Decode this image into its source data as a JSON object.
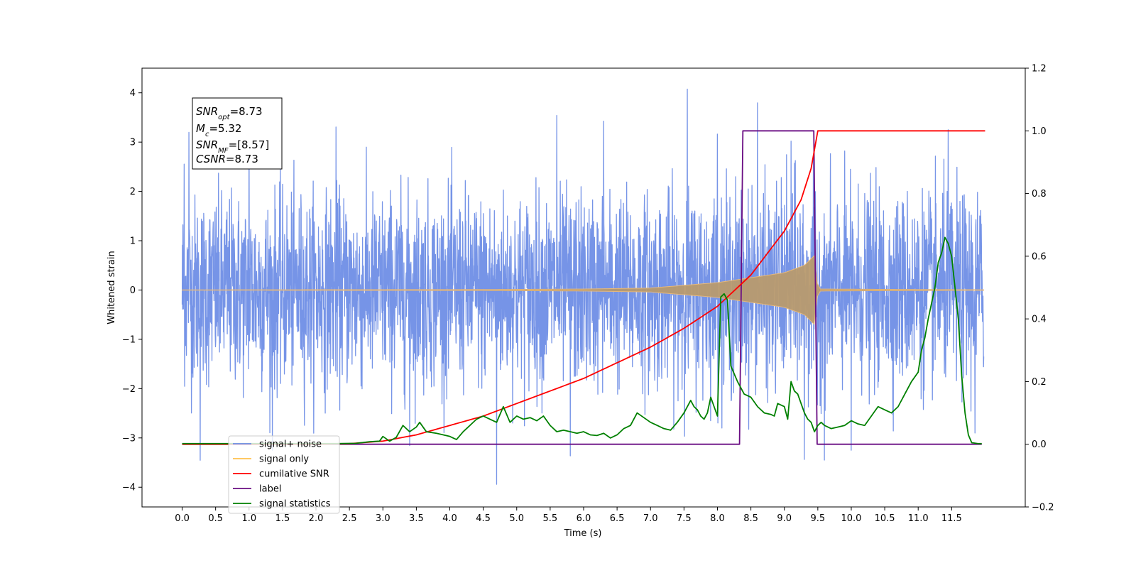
{
  "chart_data": {
    "type": "line",
    "xlabel": "Time (s)",
    "ylabel": "Whitened strain",
    "x_ticks": [
      "0.0",
      "0.5",
      "1.0",
      "1.5",
      "2.0",
      "2.5",
      "3.0",
      "3.5",
      "4.0",
      "4.5",
      "5.0",
      "5.5",
      "6.0",
      "6.5",
      "7.0",
      "7.5",
      "8.0",
      "8.5",
      "9.0",
      "9.5",
      "10.0",
      "10.5",
      "11.0",
      "11.5"
    ],
    "xlim": [
      -0.6,
      12.6
    ],
    "ylim_left": [
      -4.4,
      4.5
    ],
    "ylim_right": [
      -0.2,
      1.2
    ],
    "y_left_ticks": [
      "4",
      "3",
      "2",
      "1",
      "0",
      "−1",
      "−2",
      "−3",
      "−4"
    ],
    "y_right_ticks": [
      "1.2",
      "1.0",
      "0.8",
      "0.6",
      "0.4",
      "0.2",
      "0.0",
      "−0.2"
    ],
    "info_box": {
      "snr_opt": {
        "base": "SNR",
        "sub": "opt",
        "value": "=8.73"
      },
      "mc": {
        "base": "M",
        "sub": "c",
        "value": "=5.32"
      },
      "snr_mf": {
        "base": "SNR",
        "sub": "MF",
        "value": "=[8.57]"
      },
      "csnr": {
        "base": "CSNR",
        "sub": "",
        "value": "=8.73"
      }
    },
    "legend": {
      "placement": "lower-left",
      "entries": [
        {
          "label": "signal+ noise",
          "color": "#6f8ee6"
        },
        {
          "label": "signal only",
          "color": "#ffc04d"
        },
        {
          "label": "cumilative SNR",
          "color": "#ff0000"
        },
        {
          "label": "label",
          "color": "#6a0d83"
        },
        {
          "label": "signal statistics",
          "color": "#008000"
        }
      ]
    },
    "series": [
      {
        "name": "signal+ noise",
        "axis": "left",
        "color": "#6f8ee6",
        "style": "dense noise",
        "envelope_abs": 2.3,
        "peak_points": [
          [
            0.03,
            2.55
          ],
          [
            0.1,
            3.2
          ],
          [
            0.27,
            -3.45
          ],
          [
            1.0,
            3.1
          ],
          [
            1.35,
            -3.25
          ],
          [
            2.3,
            3.3
          ],
          [
            3.4,
            -3.15
          ],
          [
            4.7,
            -3.95
          ],
          [
            5.6,
            3.55
          ],
          [
            5.8,
            -3.35
          ],
          [
            6.3,
            3.4
          ],
          [
            7.55,
            4.1
          ],
          [
            8.0,
            3.3
          ],
          [
            8.6,
            3.55
          ],
          [
            9.1,
            3.4
          ],
          [
            9.3,
            -3.25
          ],
          [
            9.6,
            -3.45
          ],
          [
            10.0,
            -3.25
          ],
          [
            11.45,
            3.25
          ],
          [
            11.85,
            -2.9
          ]
        ]
      },
      {
        "name": "signal only",
        "axis": "left",
        "color": "#b89a6e",
        "style": "chirp envelope",
        "envelope": [
          [
            0,
            0.003
          ],
          [
            4.5,
            0.01
          ],
          [
            6,
            0.02
          ],
          [
            7,
            0.04
          ],
          [
            8,
            0.15
          ],
          [
            8.5,
            0.25
          ],
          [
            9.0,
            0.35
          ],
          [
            9.3,
            0.5
          ],
          [
            9.45,
            0.7
          ],
          [
            9.5,
            0.02
          ],
          [
            12,
            0.005
          ]
        ]
      },
      {
        "name": "cumilative SNR",
        "axis": "right",
        "color": "#ff0000",
        "points": [
          [
            0,
            0
          ],
          [
            1,
            0
          ],
          [
            2,
            0
          ],
          [
            2.5,
            0.002
          ],
          [
            3,
            0.01
          ],
          [
            3.5,
            0.03
          ],
          [
            4,
            0.06
          ],
          [
            4.5,
            0.09
          ],
          [
            5,
            0.13
          ],
          [
            5.5,
            0.17
          ],
          [
            6,
            0.21
          ],
          [
            6.5,
            0.26
          ],
          [
            7,
            0.31
          ],
          [
            7.5,
            0.37
          ],
          [
            8,
            0.44
          ],
          [
            8.5,
            0.54
          ],
          [
            9,
            0.68
          ],
          [
            9.25,
            0.78
          ],
          [
            9.4,
            0.88
          ],
          [
            9.5,
            1.0
          ],
          [
            12,
            1.0
          ]
        ]
      },
      {
        "name": "label",
        "axis": "right",
        "color": "#6a0d83",
        "points": [
          [
            0,
            0
          ],
          [
            8.33,
            0
          ],
          [
            8.38,
            1.0
          ],
          [
            9.44,
            1.0
          ],
          [
            9.49,
            0
          ],
          [
            11.95,
            0
          ]
        ]
      },
      {
        "name": "signal statistics",
        "axis": "right",
        "color": "#008000",
        "points": [
          [
            0,
            0.002
          ],
          [
            2.0,
            0.002
          ],
          [
            2.3,
            0.002
          ],
          [
            2.6,
            0.003
          ],
          [
            2.8,
            0.008
          ],
          [
            2.95,
            0.01
          ],
          [
            3.0,
            0.025
          ],
          [
            3.1,
            0.01
          ],
          [
            3.2,
            0.022
          ],
          [
            3.3,
            0.06
          ],
          [
            3.4,
            0.04
          ],
          [
            3.5,
            0.055
          ],
          [
            3.55,
            0.07
          ],
          [
            3.65,
            0.04
          ],
          [
            3.8,
            0.035
          ],
          [
            4.0,
            0.025
          ],
          [
            4.1,
            0.015
          ],
          [
            4.2,
            0.04
          ],
          [
            4.3,
            0.06
          ],
          [
            4.4,
            0.08
          ],
          [
            4.5,
            0.09
          ],
          [
            4.6,
            0.08
          ],
          [
            4.7,
            0.07
          ],
          [
            4.8,
            0.12
          ],
          [
            4.9,
            0.07
          ],
          [
            5.0,
            0.09
          ],
          [
            5.1,
            0.08
          ],
          [
            5.2,
            0.085
          ],
          [
            5.3,
            0.075
          ],
          [
            5.4,
            0.09
          ],
          [
            5.5,
            0.06
          ],
          [
            5.6,
            0.04
          ],
          [
            5.7,
            0.045
          ],
          [
            5.8,
            0.04
          ],
          [
            5.9,
            0.035
          ],
          [
            6.0,
            0.04
          ],
          [
            6.1,
            0.03
          ],
          [
            6.2,
            0.028
          ],
          [
            6.3,
            0.035
          ],
          [
            6.4,
            0.02
          ],
          [
            6.5,
            0.03
          ],
          [
            6.6,
            0.05
          ],
          [
            6.7,
            0.06
          ],
          [
            6.8,
            0.1
          ],
          [
            6.9,
            0.085
          ],
          [
            7.0,
            0.07
          ],
          [
            7.1,
            0.06
          ],
          [
            7.2,
            0.05
          ],
          [
            7.3,
            0.045
          ],
          [
            7.4,
            0.07
          ],
          [
            7.5,
            0.1
          ],
          [
            7.6,
            0.14
          ],
          [
            7.65,
            0.12
          ],
          [
            7.7,
            0.11
          ],
          [
            7.75,
            0.09
          ],
          [
            7.8,
            0.08
          ],
          [
            7.85,
            0.1
          ],
          [
            7.9,
            0.15
          ],
          [
            8.0,
            0.09
          ],
          [
            8.05,
            0.47
          ],
          [
            8.1,
            0.48
          ],
          [
            8.15,
            0.46
          ],
          [
            8.2,
            0.25
          ],
          [
            8.3,
            0.2
          ],
          [
            8.4,
            0.16
          ],
          [
            8.5,
            0.15
          ],
          [
            8.6,
            0.12
          ],
          [
            8.7,
            0.1
          ],
          [
            8.8,
            0.095
          ],
          [
            8.85,
            0.09
          ],
          [
            8.9,
            0.13
          ],
          [
            9.0,
            0.12
          ],
          [
            9.05,
            0.08
          ],
          [
            9.1,
            0.2
          ],
          [
            9.15,
            0.17
          ],
          [
            9.2,
            0.16
          ],
          [
            9.3,
            0.1
          ],
          [
            9.35,
            0.08
          ],
          [
            9.4,
            0.07
          ],
          [
            9.45,
            0.04
          ],
          [
            9.5,
            0.06
          ],
          [
            9.55,
            0.07
          ],
          [
            9.6,
            0.06
          ],
          [
            9.7,
            0.05
          ],
          [
            9.8,
            0.055
          ],
          [
            9.9,
            0.06
          ],
          [
            10.0,
            0.075
          ],
          [
            10.1,
            0.065
          ],
          [
            10.2,
            0.06
          ],
          [
            10.3,
            0.09
          ],
          [
            10.4,
            0.12
          ],
          [
            10.5,
            0.11
          ],
          [
            10.6,
            0.1
          ],
          [
            10.7,
            0.12
          ],
          [
            10.8,
            0.16
          ],
          [
            10.9,
            0.2
          ],
          [
            11.0,
            0.23
          ],
          [
            11.05,
            0.3
          ],
          [
            11.1,
            0.34
          ],
          [
            11.15,
            0.4
          ],
          [
            11.2,
            0.45
          ],
          [
            11.25,
            0.5
          ],
          [
            11.3,
            0.58
          ],
          [
            11.35,
            0.61
          ],
          [
            11.4,
            0.66
          ],
          [
            11.45,
            0.64
          ],
          [
            11.5,
            0.6
          ],
          [
            11.55,
            0.5
          ],
          [
            11.6,
            0.4
          ],
          [
            11.65,
            0.22
          ],
          [
            11.7,
            0.1
          ],
          [
            11.75,
            0.03
          ],
          [
            11.8,
            0.005
          ],
          [
            11.9,
            0.002
          ],
          [
            11.95,
            0.002
          ]
        ]
      }
    ]
  }
}
